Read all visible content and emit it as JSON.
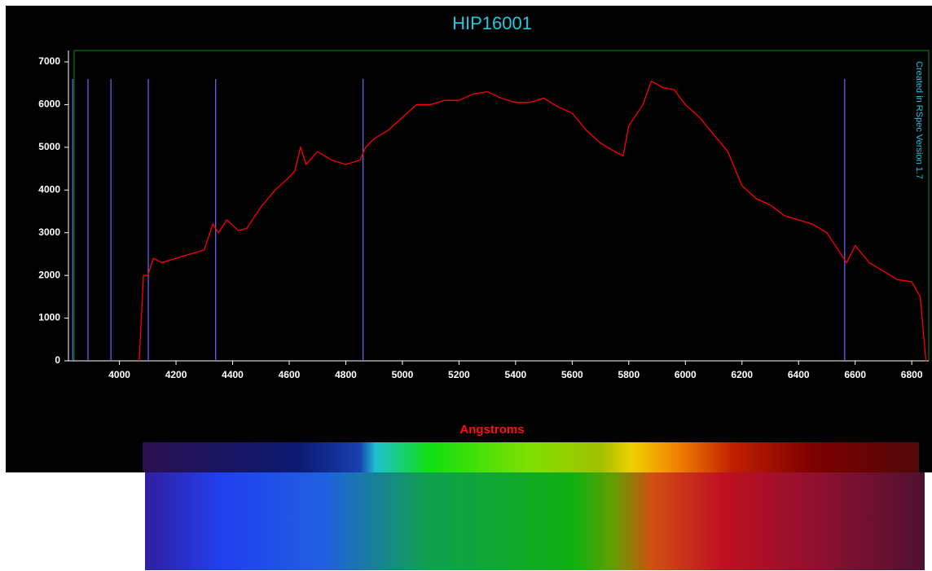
{
  "chart_data": {
    "type": "line",
    "title": "HIP16001",
    "x_label": "Angstroms",
    "annotation": "Created in RSpec Version 1.7",
    "x": [
      4070,
      4085,
      4100,
      4120,
      4150,
      4200,
      4250,
      4300,
      4330,
      4350,
      4380,
      4420,
      4450,
      4500,
      4550,
      4600,
      4620,
      4640,
      4660,
      4700,
      4750,
      4800,
      4850,
      4870,
      4900,
      4950,
      5000,
      5050,
      5100,
      5150,
      5200,
      5250,
      5300,
      5350,
      5400,
      5450,
      5500,
      5550,
      5600,
      5650,
      5700,
      5750,
      5780,
      5800,
      5850,
      5880,
      5920,
      5960,
      6000,
      6050,
      6100,
      6150,
      6200,
      6250,
      6300,
      6350,
      6400,
      6450,
      6500,
      6550,
      6570,
      6600,
      6650,
      6700,
      6750,
      6800,
      6830,
      6850
    ],
    "series": [
      {
        "color": "#ff0000",
        "values": [
          0,
          2000,
          2000,
          2400,
          2300,
          2400,
          2500,
          2600,
          3200,
          3000,
          3300,
          3050,
          3100,
          3600,
          4000,
          4300,
          4450,
          5000,
          4600,
          4900,
          4700,
          4600,
          4700,
          5000,
          5200,
          5400,
          5700,
          6000,
          6000,
          6100,
          6100,
          6250,
          6300,
          6150,
          6050,
          6050,
          6150,
          5950,
          5800,
          5400,
          5100,
          4900,
          4800,
          5500,
          6000,
          6550,
          6400,
          6350,
          6000,
          5700,
          5300,
          4900,
          4100,
          3800,
          3650,
          3400,
          3300,
          3200,
          3000,
          2500,
          2300,
          2700,
          2300,
          2100,
          1900,
          1850,
          1500,
          0
        ]
      }
    ],
    "reference_lines": {
      "x": [
        3835,
        3889,
        3970,
        4102,
        4340,
        4861,
        6563
      ],
      "height": 6600,
      "color": "#6b6bff"
    },
    "xlim": [
      3840,
      6860
    ],
    "ylim": [
      0,
      7267
    ],
    "xticks": [
      4000,
      4200,
      4400,
      4600,
      4800,
      5000,
      5200,
      5400,
      5600,
      5800,
      6000,
      6200,
      6400,
      6600,
      6800
    ],
    "yticks": [
      0,
      1000,
      2000,
      3000,
      4000,
      5000,
      6000,
      7000
    ]
  }
}
